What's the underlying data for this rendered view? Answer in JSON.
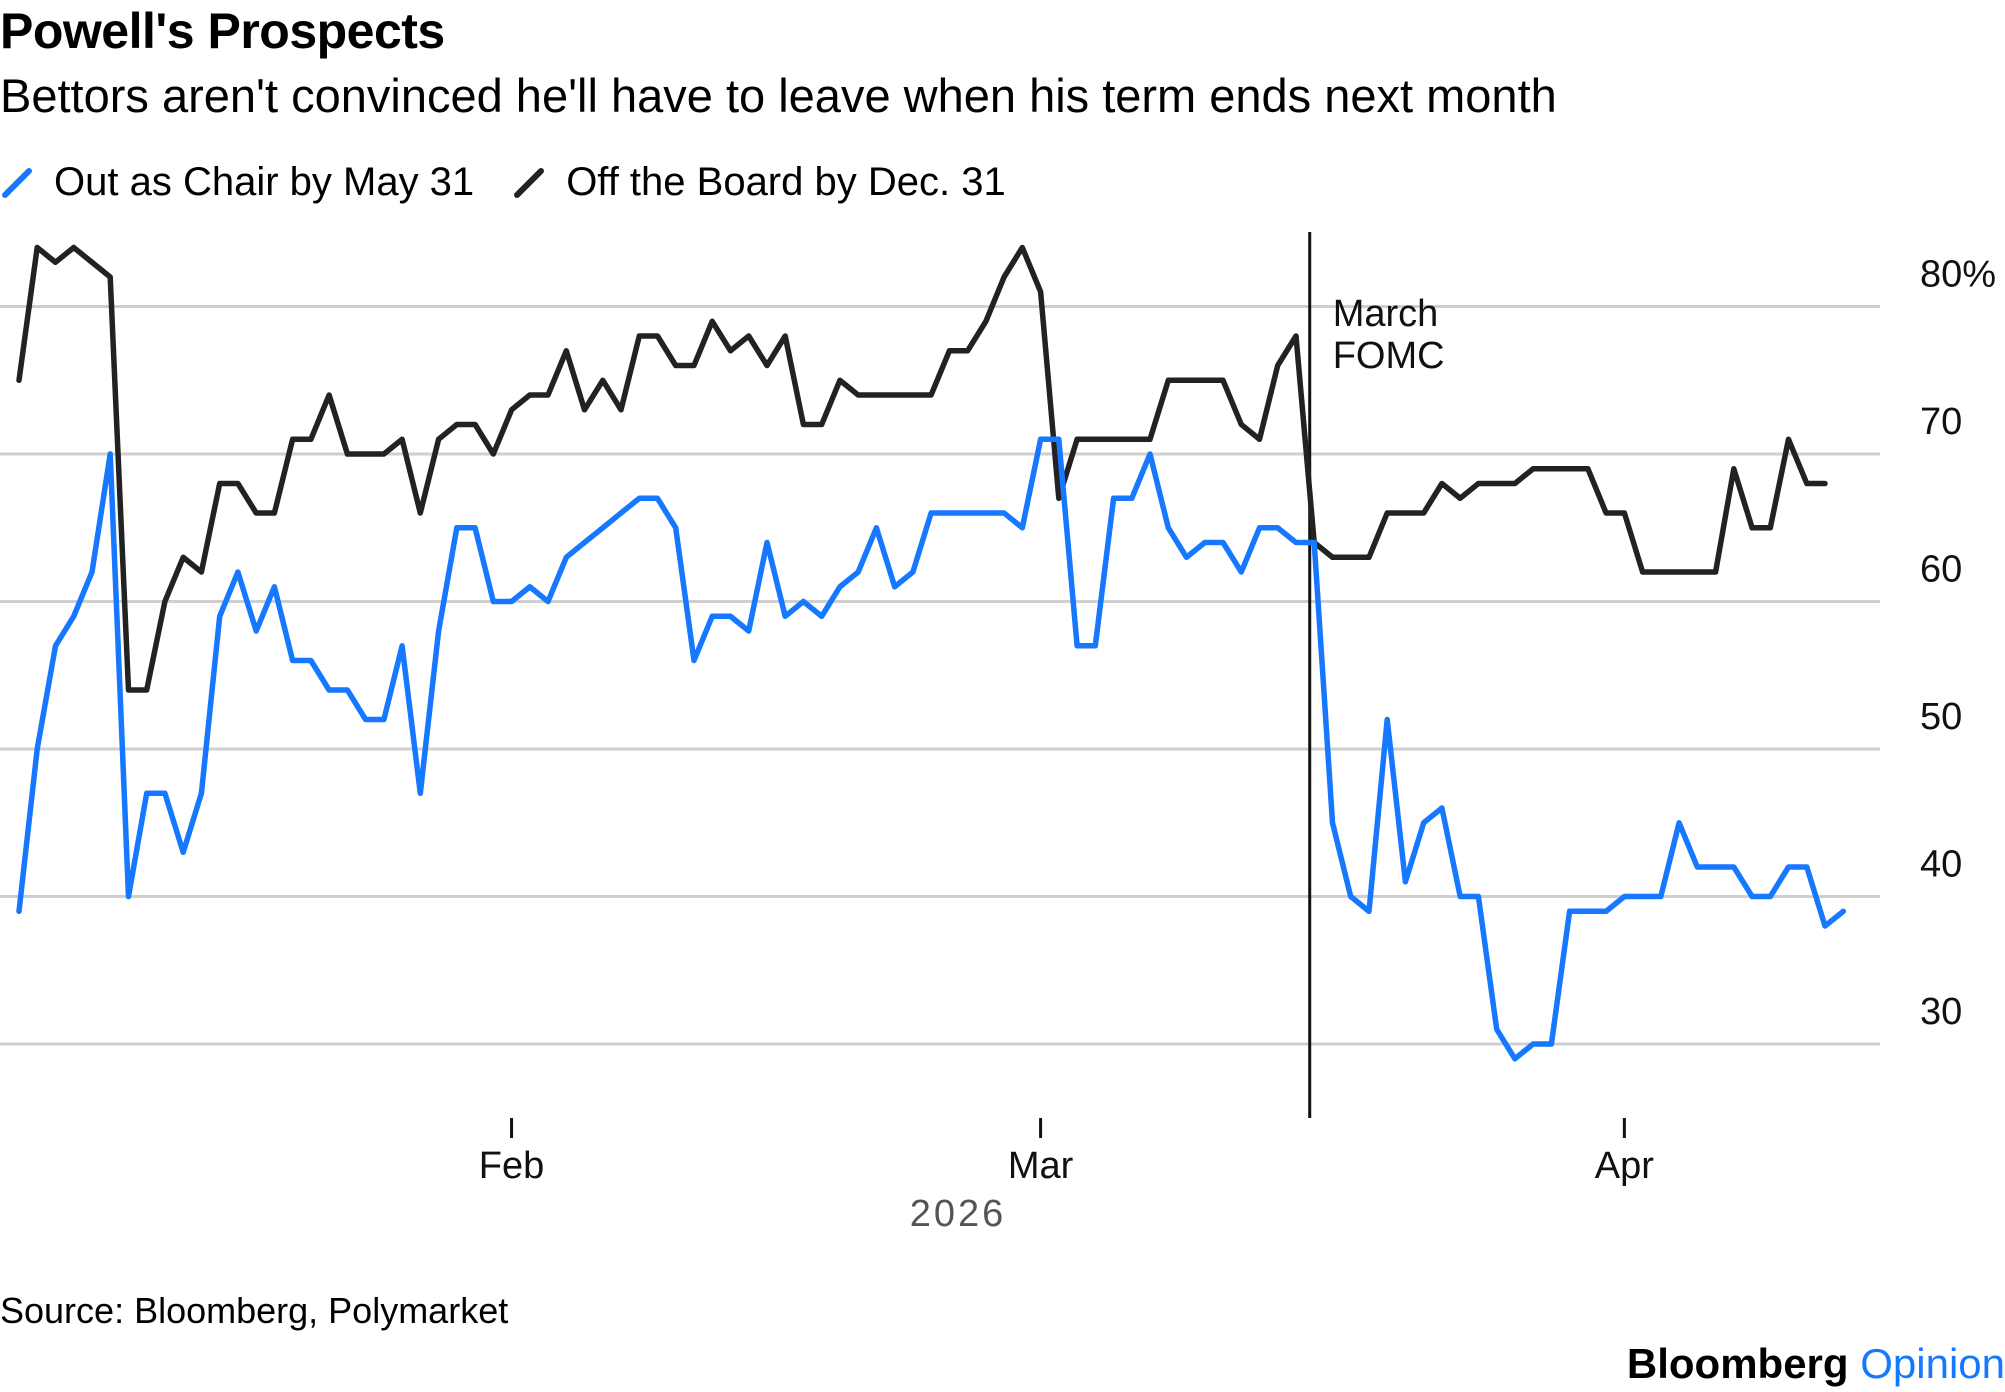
{
  "header": {
    "title": "Powell's Prospects",
    "subtitle": "Bettors aren't convinced he'll have to leave when his term ends next month"
  },
  "footer": {
    "source": "Source: Bloomberg, Polymarket",
    "brand_main": "Bloomberg",
    "brand_accent": "Opinion"
  },
  "chart_data": {
    "type": "line",
    "title": "Powell's Prospects",
    "subtitle": "Bettors aren't convinced he'll have to leave when his term ends next month",
    "xlabel": "2026",
    "ylabel": "",
    "ylim": [
      25,
      85
    ],
    "y_ticks": [
      30,
      40,
      50,
      60,
      70,
      80
    ],
    "y_tick_labels": [
      "30",
      "40",
      "50",
      "60",
      "70",
      "80%"
    ],
    "x_ticks": [
      {
        "label": "Feb",
        "day": 28
      },
      {
        "label": "Mar",
        "day": 57
      },
      {
        "label": "Apr",
        "day": 89
      }
    ],
    "x_range": [
      1,
      104
    ],
    "grid": true,
    "legend_position": "top-left",
    "annotation": {
      "label_line1": "March",
      "label_line2": "FOMC",
      "day": 74
    },
    "series": [
      {
        "name": "Out as Chair by May 31",
        "color": "#1677ff",
        "points": [
          [
            1,
            39
          ],
          [
            2,
            50
          ],
          [
            3,
            57
          ],
          [
            4,
            59
          ],
          [
            5,
            62
          ],
          [
            6,
            70
          ],
          [
            7,
            40
          ],
          [
            8,
            47
          ],
          [
            9,
            47
          ],
          [
            10,
            43
          ],
          [
            11,
            47
          ],
          [
            12,
            59
          ],
          [
            13,
            62
          ],
          [
            14,
            58
          ],
          [
            15,
            61
          ],
          [
            16,
            56
          ],
          [
            17,
            56
          ],
          [
            18,
            54
          ],
          [
            19,
            54
          ],
          [
            20,
            52
          ],
          [
            21,
            52
          ],
          [
            22,
            57
          ],
          [
            23,
            47
          ],
          [
            24,
            58
          ],
          [
            25,
            65
          ],
          [
            26,
            65
          ],
          [
            27,
            60
          ],
          [
            28,
            60
          ],
          [
            29,
            61
          ],
          [
            30,
            60
          ],
          [
            31,
            63
          ],
          [
            32,
            64
          ],
          [
            33,
            65
          ],
          [
            34,
            66
          ],
          [
            35,
            67
          ],
          [
            36,
            67
          ],
          [
            37,
            65
          ],
          [
            38,
            56
          ],
          [
            39,
            59
          ],
          [
            40,
            59
          ],
          [
            41,
            58
          ],
          [
            42,
            64
          ],
          [
            43,
            59
          ],
          [
            44,
            60
          ],
          [
            45,
            59
          ],
          [
            46,
            61
          ],
          [
            47,
            62
          ],
          [
            48,
            65
          ],
          [
            49,
            61
          ],
          [
            50,
            62
          ],
          [
            51,
            66
          ],
          [
            52,
            66
          ],
          [
            53,
            66
          ],
          [
            54,
            66
          ],
          [
            55,
            66
          ],
          [
            56,
            65
          ],
          [
            57,
            71
          ],
          [
            58,
            71
          ],
          [
            59,
            57
          ],
          [
            60,
            57
          ],
          [
            61,
            67
          ],
          [
            62,
            67
          ],
          [
            63,
            70
          ],
          [
            64,
            65
          ],
          [
            65,
            63
          ],
          [
            66,
            64
          ],
          [
            67,
            64
          ],
          [
            68,
            62
          ],
          [
            69,
            65
          ],
          [
            70,
            65
          ],
          [
            71,
            64
          ],
          [
            72,
            64
          ],
          [
            73,
            45
          ],
          [
            74,
            40
          ],
          [
            75,
            39
          ],
          [
            76,
            52
          ],
          [
            77,
            41
          ],
          [
            78,
            45
          ],
          [
            79,
            46
          ],
          [
            80,
            40
          ],
          [
            81,
            40
          ],
          [
            82,
            31
          ],
          [
            83,
            29
          ],
          [
            84,
            30
          ],
          [
            85,
            30
          ],
          [
            86,
            39
          ],
          [
            87,
            39
          ],
          [
            88,
            39
          ],
          [
            89,
            40
          ],
          [
            90,
            40
          ],
          [
            91,
            40
          ],
          [
            92,
            45
          ],
          [
            93,
            42
          ],
          [
            94,
            42
          ],
          [
            95,
            42
          ],
          [
            96,
            40
          ],
          [
            97,
            40
          ],
          [
            98,
            42
          ],
          [
            99,
            42
          ],
          [
            100,
            38
          ],
          [
            101,
            39
          ]
        ]
      },
      {
        "name": "Off the Board by Dec. 31",
        "color": "#222222",
        "points": [
          [
            1,
            75
          ],
          [
            2,
            84
          ],
          [
            3,
            83
          ],
          [
            4,
            84
          ],
          [
            5,
            83
          ],
          [
            6,
            82
          ],
          [
            7,
            54
          ],
          [
            8,
            54
          ],
          [
            9,
            60
          ],
          [
            10,
            63
          ],
          [
            11,
            62
          ],
          [
            12,
            68
          ],
          [
            13,
            68
          ],
          [
            14,
            66
          ],
          [
            15,
            66
          ],
          [
            16,
            71
          ],
          [
            17,
            71
          ],
          [
            18,
            74
          ],
          [
            19,
            70
          ],
          [
            20,
            70
          ],
          [
            21,
            70
          ],
          [
            22,
            71
          ],
          [
            23,
            66
          ],
          [
            24,
            71
          ],
          [
            25,
            72
          ],
          [
            26,
            72
          ],
          [
            27,
            70
          ],
          [
            28,
            73
          ],
          [
            29,
            74
          ],
          [
            30,
            74
          ],
          [
            31,
            77
          ],
          [
            32,
            73
          ],
          [
            33,
            75
          ],
          [
            34,
            73
          ],
          [
            35,
            78
          ],
          [
            36,
            78
          ],
          [
            37,
            76
          ],
          [
            38,
            76
          ],
          [
            39,
            79
          ],
          [
            40,
            77
          ],
          [
            41,
            78
          ],
          [
            42,
            76
          ],
          [
            43,
            78
          ],
          [
            44,
            72
          ],
          [
            45,
            72
          ],
          [
            46,
            75
          ],
          [
            47,
            74
          ],
          [
            48,
            74
          ],
          [
            49,
            74
          ],
          [
            50,
            74
          ],
          [
            51,
            74
          ],
          [
            52,
            77
          ],
          [
            53,
            77
          ],
          [
            54,
            79
          ],
          [
            55,
            82
          ],
          [
            56,
            84
          ],
          [
            57,
            81
          ],
          [
            58,
            67
          ],
          [
            59,
            71
          ],
          [
            60,
            71
          ],
          [
            61,
            71
          ],
          [
            62,
            71
          ],
          [
            63,
            71
          ],
          [
            64,
            75
          ],
          [
            65,
            75
          ],
          [
            66,
            75
          ],
          [
            67,
            75
          ],
          [
            68,
            72
          ],
          [
            69,
            71
          ],
          [
            70,
            76
          ],
          [
            71,
            78
          ],
          [
            72,
            64
          ],
          [
            73,
            63
          ],
          [
            74,
            63
          ],
          [
            75,
            63
          ],
          [
            76,
            66
          ],
          [
            77,
            66
          ],
          [
            78,
            66
          ],
          [
            79,
            68
          ],
          [
            80,
            67
          ],
          [
            81,
            68
          ],
          [
            82,
            68
          ],
          [
            83,
            68
          ],
          [
            84,
            69
          ],
          [
            85,
            69
          ],
          [
            86,
            69
          ],
          [
            87,
            69
          ],
          [
            88,
            66
          ],
          [
            89,
            66
          ],
          [
            90,
            62
          ],
          [
            91,
            62
          ],
          [
            92,
            62
          ],
          [
            93,
            62
          ],
          [
            94,
            62
          ],
          [
            95,
            69
          ],
          [
            96,
            65
          ],
          [
            97,
            65
          ],
          [
            98,
            71
          ],
          [
            99,
            68
          ],
          [
            100,
            68
          ]
        ]
      }
    ]
  }
}
